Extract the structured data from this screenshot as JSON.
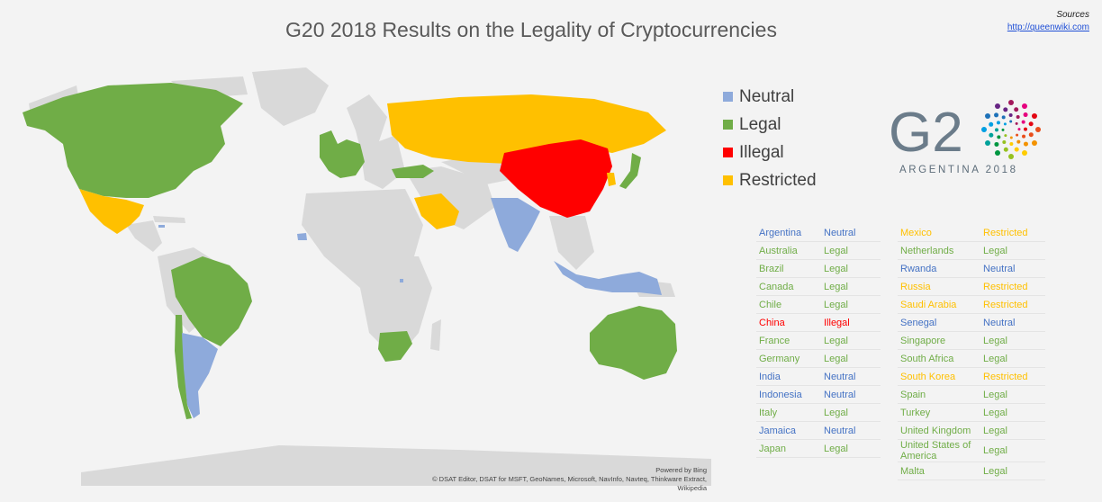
{
  "title": "G20 2018 Results on the Legality of Cryptocurrencies",
  "sources": {
    "label": "Sources",
    "url": "http://queenwiki.com"
  },
  "colors": {
    "neutral": "#8eaadb",
    "legal": "#70ad47",
    "illegal": "#ff0000",
    "restricted": "#ffc000",
    "land": "#d9d9d9",
    "ocean": "#f3f3f3",
    "neutral_text": "#4472c4"
  },
  "legend": [
    {
      "label": "Neutral",
      "status": "neutral"
    },
    {
      "label": "Legal",
      "status": "legal"
    },
    {
      "label": "Illegal",
      "status": "illegal"
    },
    {
      "label": "Restricted",
      "status": "restricted"
    }
  ],
  "logo": {
    "main": "G2",
    "sub": "ARGENTINA 2018"
  },
  "credit": {
    "line1": "Powered by Bing",
    "line2": "© DSAT Editor, DSAT for MSFT, GeoNames, Microsoft, NavInfo, Navteq, Thinkware Extract, Wikipedia"
  },
  "table_left": [
    {
      "country": "Argentina",
      "status_label": "Neutral",
      "status": "neutral"
    },
    {
      "country": "Australia",
      "status_label": "Legal",
      "status": "legal"
    },
    {
      "country": "Brazil",
      "status_label": "Legal",
      "status": "legal"
    },
    {
      "country": "Canada",
      "status_label": "Legal",
      "status": "legal"
    },
    {
      "country": "Chile",
      "status_label": "Legal",
      "status": "legal"
    },
    {
      "country": "China",
      "status_label": "Illegal",
      "status": "illegal"
    },
    {
      "country": "France",
      "status_label": "Legal",
      "status": "legal"
    },
    {
      "country": "Germany",
      "status_label": "Legal",
      "status": "legal"
    },
    {
      "country": "India",
      "status_label": "Neutral",
      "status": "neutral"
    },
    {
      "country": "Indonesia",
      "status_label": "Neutral",
      "status": "neutral"
    },
    {
      "country": "Italy",
      "status_label": "Legal",
      "status": "legal"
    },
    {
      "country": "Jamaica",
      "status_label": "Neutral",
      "status": "neutral"
    },
    {
      "country": "Japan",
      "status_label": "Legal",
      "status": "legal"
    }
  ],
  "table_right": [
    {
      "country": "Mexico",
      "status_label": "Restricted",
      "status": "restricted"
    },
    {
      "country": "Netherlands",
      "status_label": "Legal",
      "status": "legal"
    },
    {
      "country": "Rwanda",
      "status_label": "Neutral",
      "status": "neutral"
    },
    {
      "country": "Russia",
      "status_label": "Restricted",
      "status": "restricted"
    },
    {
      "country": "Saudi Arabia",
      "status_label": "Restricted",
      "status": "restricted"
    },
    {
      "country": "Senegal",
      "status_label": "Neutral",
      "status": "neutral"
    },
    {
      "country": "Singapore",
      "status_label": "Legal",
      "status": "legal"
    },
    {
      "country": "South Africa",
      "status_label": "Legal",
      "status": "legal"
    },
    {
      "country": "South Korea",
      "status_label": "Restricted",
      "status": "restricted"
    },
    {
      "country": "Spain",
      "status_label": "Legal",
      "status": "legal"
    },
    {
      "country": "Turkey",
      "status_label": "Legal",
      "status": "legal"
    },
    {
      "country": "United Kingdom",
      "status_label": "Legal",
      "status": "legal"
    },
    {
      "country": "United States of America",
      "status_label": "Legal",
      "status": "legal"
    },
    {
      "country": "Malta",
      "status_label": "Legal",
      "status": "legal"
    }
  ],
  "map_regions": [
    {
      "name": "north-america",
      "status": "legal"
    },
    {
      "name": "mexico",
      "status": "restricted"
    },
    {
      "name": "brazil",
      "status": "legal"
    },
    {
      "name": "chile",
      "status": "legal"
    },
    {
      "name": "argentina",
      "status": "neutral"
    },
    {
      "name": "western-europe",
      "status": "legal"
    },
    {
      "name": "turkey",
      "status": "legal"
    },
    {
      "name": "russia",
      "status": "restricted"
    },
    {
      "name": "saudi-arabia",
      "status": "restricted"
    },
    {
      "name": "china",
      "status": "illegal"
    },
    {
      "name": "india",
      "status": "neutral"
    },
    {
      "name": "japan",
      "status": "legal"
    },
    {
      "name": "south-korea",
      "status": "restricted"
    },
    {
      "name": "indonesia",
      "status": "neutral"
    },
    {
      "name": "australia",
      "status": "legal"
    },
    {
      "name": "south-africa",
      "status": "legal"
    },
    {
      "name": "senegal",
      "status": "neutral"
    },
    {
      "name": "rwanda",
      "status": "neutral"
    },
    {
      "name": "jamaica",
      "status": "neutral"
    }
  ]
}
